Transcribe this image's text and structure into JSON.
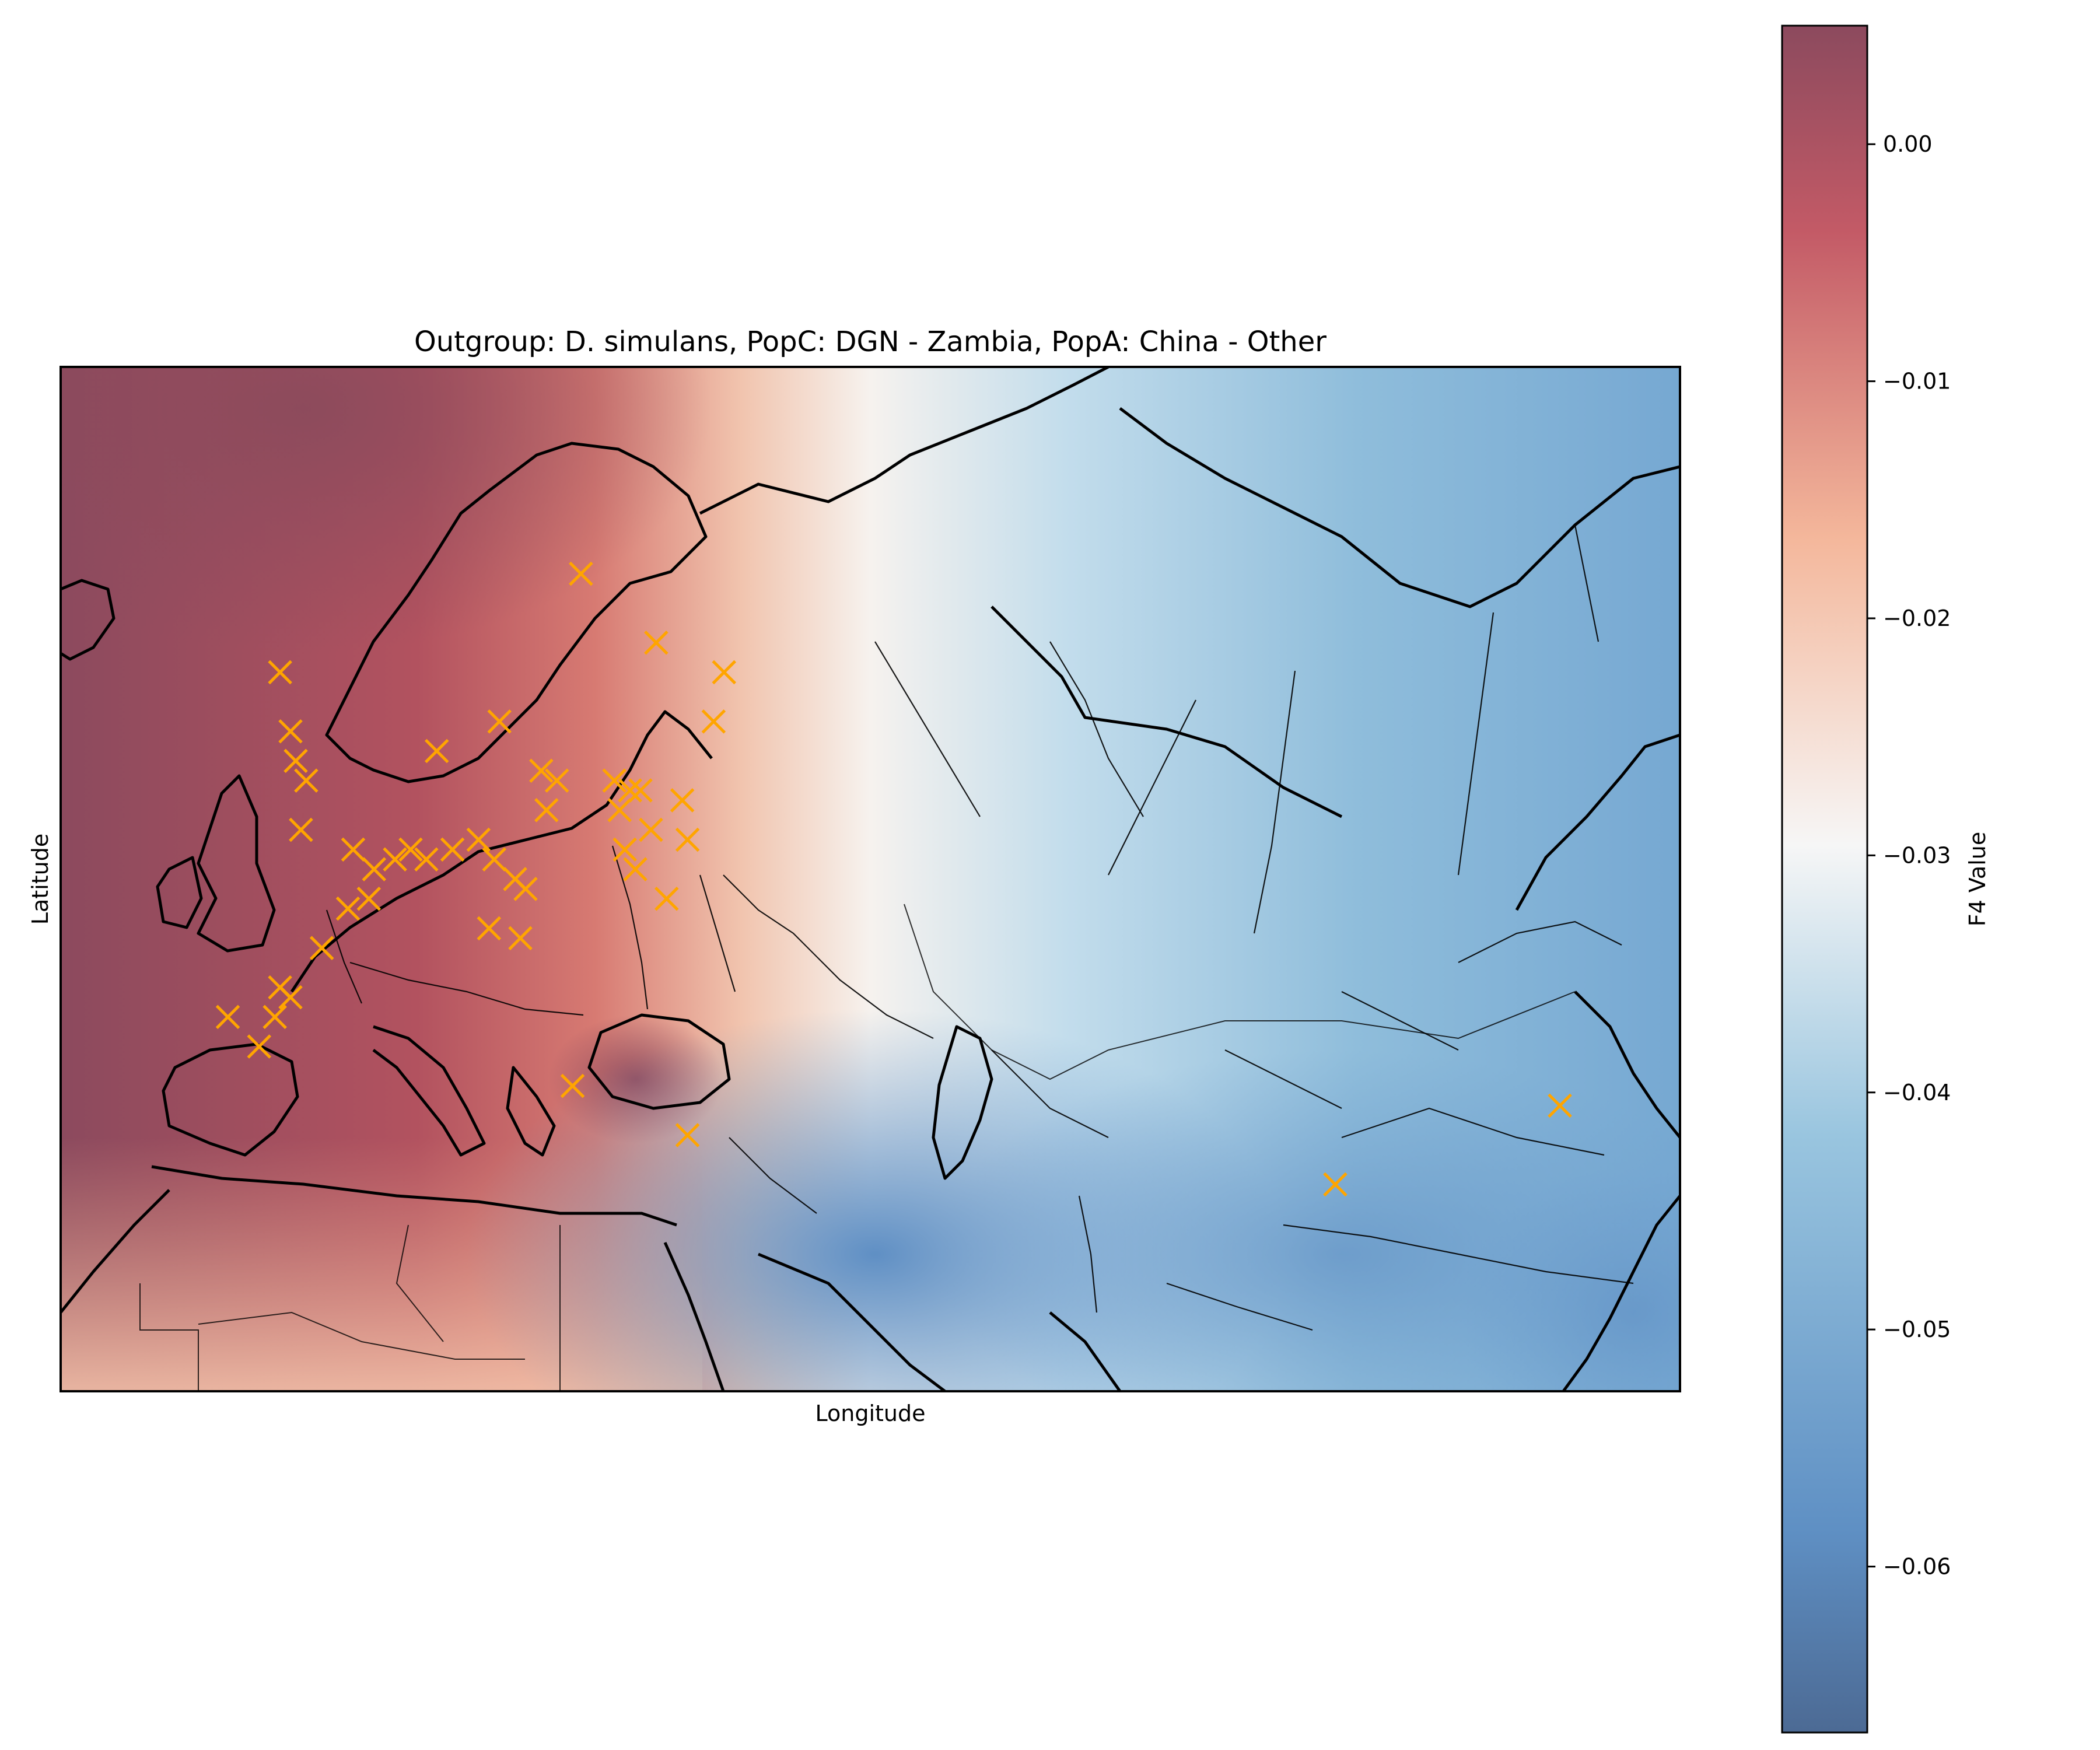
{
  "figure": {
    "title": "Outgroup: D. simulans, PopC: DGN - Zambia, PopA: China - Other",
    "xlabel": "Longitude",
    "ylabel": "Latitude"
  },
  "colorbar": {
    "label": "F4 Value",
    "vmin": -0.067,
    "vmax": 0.005,
    "ticks": [
      0.0,
      -0.01,
      -0.02,
      -0.03,
      -0.04,
      -0.05,
      -0.06
    ],
    "tick_labels": [
      "0.00",
      "−0.01",
      "−0.02",
      "−0.03",
      "−0.04",
      "−0.05",
      "−0.06"
    ],
    "colors": [
      "#4c6a94",
      "#5f90c4",
      "#99c5df",
      "#f6f6f6",
      "#f4b79b",
      "#c35a66",
      "#8c4a5e"
    ]
  },
  "chart_data": {
    "type": "map-heatmap",
    "title": "Outgroup: D. simulans, PopC: DGN - Zambia, PopA: China - Other",
    "xlabel": "Longitude",
    "ylabel": "Latitude",
    "extent_lon": [
      -25,
      130
    ],
    "extent_lat": [
      20,
      72
    ],
    "marker": "x",
    "marker_color": "#ffa500",
    "sample_points": [
      {
        "lon": 24.8,
        "lat": 61.5
      },
      {
        "lon": 32.0,
        "lat": 58.0
      },
      {
        "lon": 38.5,
        "lat": 56.5
      },
      {
        "lon": 37.5,
        "lat": 54.0
      },
      {
        "lon": 17.0,
        "lat": 54.0
      },
      {
        "lon": 11.0,
        "lat": 52.5
      },
      {
        "lon": 21.0,
        "lat": 51.5
      },
      {
        "lon": 22.5,
        "lat": 51.0
      },
      {
        "lon": 28.0,
        "lat": 51.0
      },
      {
        "lon": 29.5,
        "lat": 50.5
      },
      {
        "lon": 30.5,
        "lat": 50.5
      },
      {
        "lon": 34.5,
        "lat": 50.0
      },
      {
        "lon": 28.5,
        "lat": 49.5
      },
      {
        "lon": 21.5,
        "lat": 49.5
      },
      {
        "lon": 31.5,
        "lat": 48.5
      },
      {
        "lon": 35.0,
        "lat": 48.0
      },
      {
        "lon": 29.0,
        "lat": 47.5
      },
      {
        "lon": 30.0,
        "lat": 46.5
      },
      {
        "lon": 33.0,
        "lat": 45.0
      },
      {
        "lon": -2.0,
        "lat": 48.5
      },
      {
        "lon": 3.0,
        "lat": 47.5
      },
      {
        "lon": 5.0,
        "lat": 46.5
      },
      {
        "lon": 7.0,
        "lat": 47.0
      },
      {
        "lon": 8.5,
        "lat": 47.5
      },
      {
        "lon": 10.0,
        "lat": 47.0
      },
      {
        "lon": 12.5,
        "lat": 47.5
      },
      {
        "lon": 15.0,
        "lat": 48.0
      },
      {
        "lon": 16.5,
        "lat": 47.0
      },
      {
        "lon": 18.5,
        "lat": 46.0
      },
      {
        "lon": 19.5,
        "lat": 45.5
      },
      {
        "lon": 4.5,
        "lat": 45.0
      },
      {
        "lon": 2.5,
        "lat": 44.5
      },
      {
        "lon": 16.0,
        "lat": 43.5
      },
      {
        "lon": 19.0,
        "lat": 43.0
      },
      {
        "lon": 0.0,
        "lat": 42.5
      },
      {
        "lon": -4.0,
        "lat": 40.5
      },
      {
        "lon": -3.0,
        "lat": 40.0
      },
      {
        "lon": -4.5,
        "lat": 39.0
      },
      {
        "lon": -9.0,
        "lat": 39.0
      },
      {
        "lon": -6.0,
        "lat": 37.5
      },
      {
        "lon": -3.0,
        "lat": 53.5
      },
      {
        "lon": -2.5,
        "lat": 52.0
      },
      {
        "lon": -1.5,
        "lat": 51.0
      },
      {
        "lon": -4.0,
        "lat": 56.5
      },
      {
        "lon": 24.0,
        "lat": 35.5
      },
      {
        "lon": 35.0,
        "lat": 33.0
      },
      {
        "lon": 97.0,
        "lat": 30.5
      },
      {
        "lon": 118.5,
        "lat": 34.5
      }
    ]
  }
}
